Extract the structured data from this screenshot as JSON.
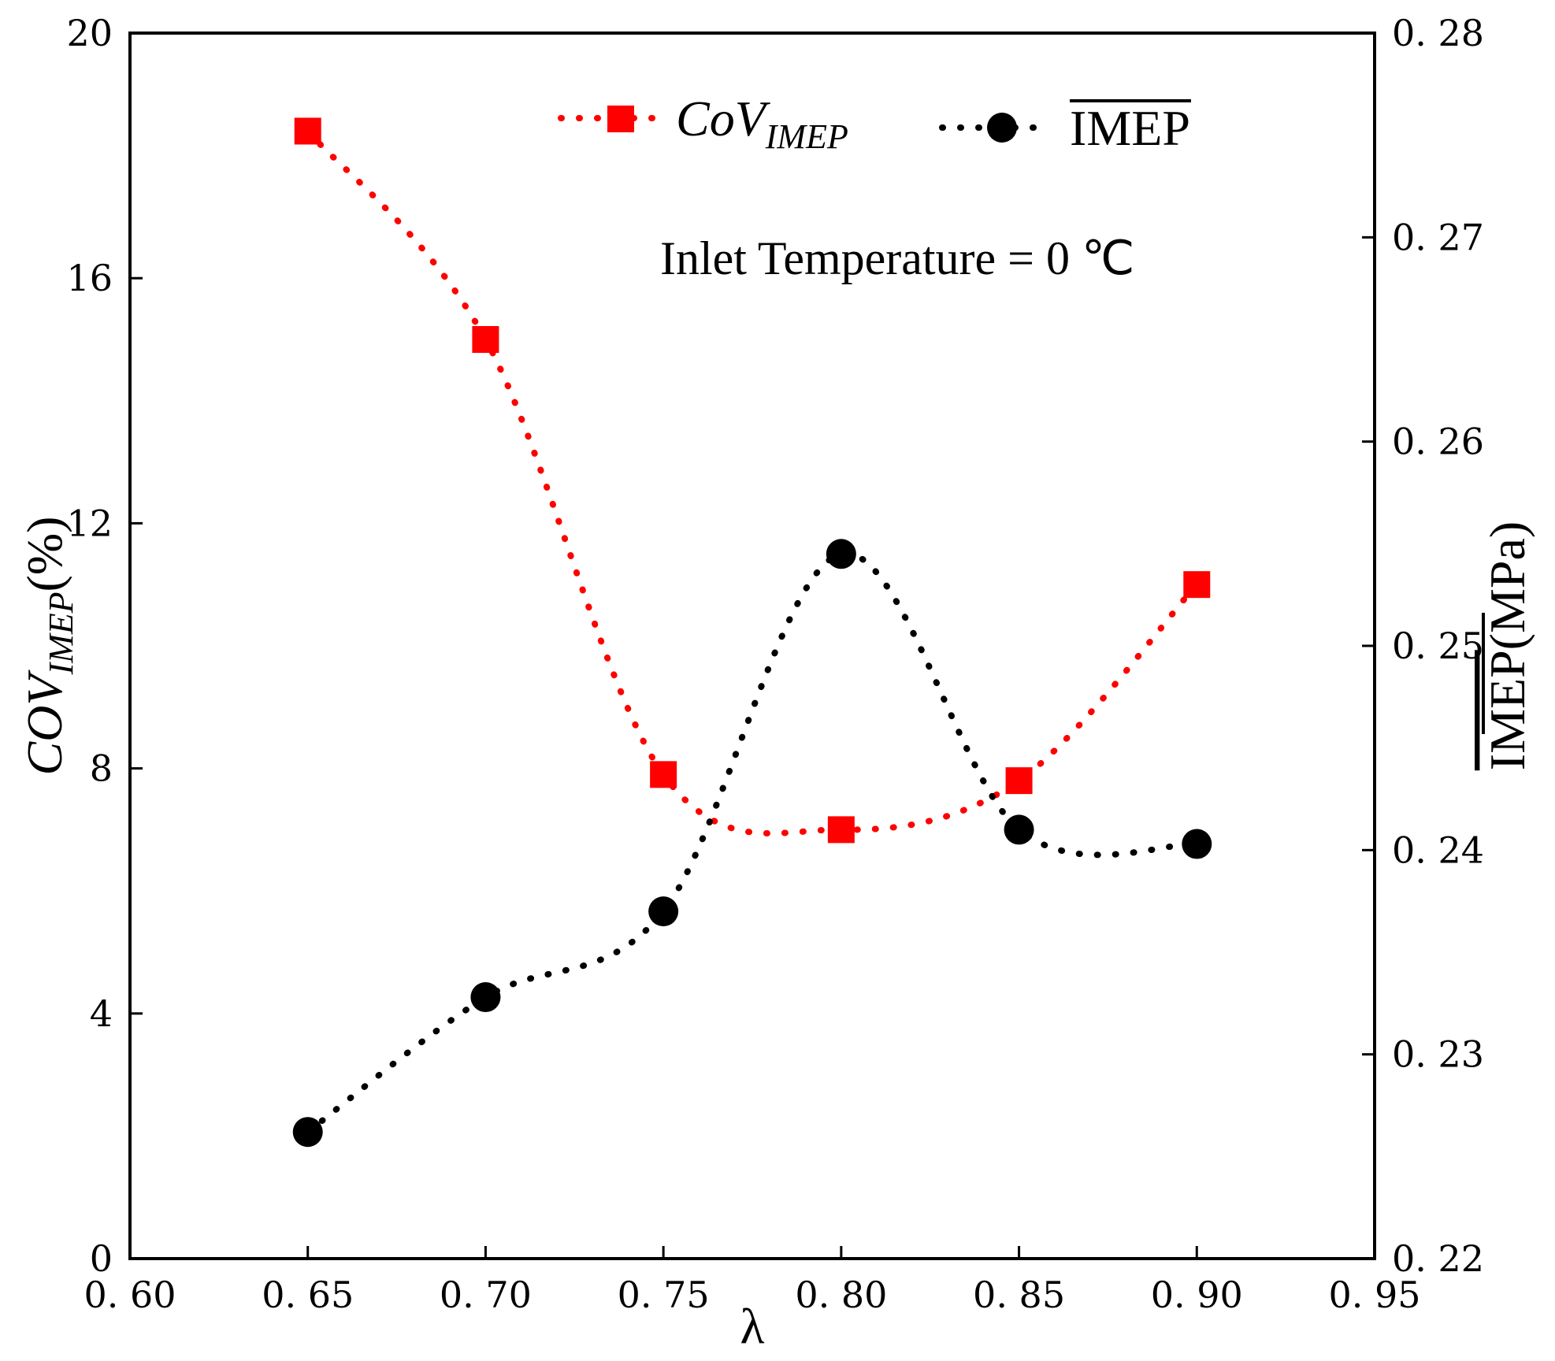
{
  "chart_data": {
    "type": "line",
    "title": "",
    "annotation": "Inlet Temperature = 0 ℃",
    "xlabel": "λ",
    "ylabel_left": {
      "main": "COV",
      "sub": "IMEP",
      "unit": "(%)"
    },
    "ylabel_right": {
      "main": "IMEP",
      "unit": "(MPa)",
      "overline": true
    },
    "xlim": [
      0.6,
      0.95
    ],
    "ylim_left": [
      0,
      20
    ],
    "ylim_right": [
      0.22,
      0.28
    ],
    "x_ticks": [
      0.6,
      0.65,
      0.7,
      0.75,
      0.8,
      0.85,
      0.9,
      0.95
    ],
    "x_tick_labels": [
      "0. 60",
      "0. 65",
      "0. 70",
      "0. 75",
      "0. 80",
      "0. 85",
      "0. 90",
      "0. 95"
    ],
    "y_left_ticks": [
      0,
      4,
      8,
      12,
      16,
      20
    ],
    "y_left_tick_labels": [
      "0",
      "4",
      "8",
      "12",
      "16",
      "20"
    ],
    "y_right_ticks": [
      0.22,
      0.23,
      0.24,
      0.25,
      0.26,
      0.27,
      0.28
    ],
    "y_right_tick_labels": [
      "0. 22",
      "0. 23",
      "0. 24",
      "0. 25",
      "0. 26",
      "0. 27",
      "0. 28"
    ],
    "legend_position": "top",
    "series": [
      {
        "name": "CoV",
        "name_sub": "IMEP",
        "axis": "left",
        "color": "#ff0000",
        "marker": "square",
        "line": "dotted",
        "x": [
          0.65,
          0.7,
          0.75,
          0.8,
          0.85,
          0.9
        ],
        "values": [
          18.4,
          15.0,
          7.9,
          7.0,
          7.8,
          11.0
        ]
      },
      {
        "name": "IMEP",
        "overline": true,
        "axis": "right",
        "color": "#000000",
        "marker": "circle",
        "line": "dotted",
        "x": [
          0.65,
          0.7,
          0.75,
          0.8,
          0.85,
          0.9
        ],
        "values": [
          0.2262,
          0.2328,
          0.237,
          0.2545,
          0.241,
          0.2403
        ]
      }
    ]
  }
}
